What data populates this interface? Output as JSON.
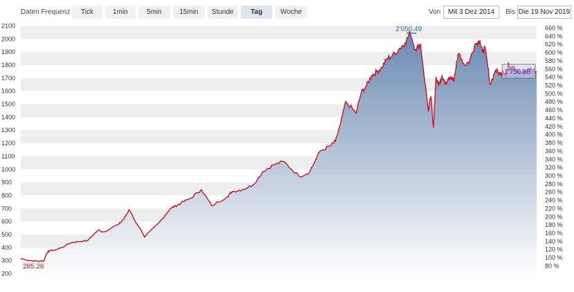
{
  "toolbar": {
    "freq_label": "Daten Frequenz",
    "buttons": [
      "Tick",
      "1min",
      "5min",
      "15min",
      "Stunde",
      "Tag",
      "Woche"
    ],
    "active": "Tag",
    "from_label": "Von",
    "from_value": "Mit 3 Dez 2014",
    "to_label": "Bis",
    "to_value": "Die 19 Nov 2019"
  },
  "colors": {
    "line": "#cc1122",
    "fill_top": "#5a7daa",
    "fill_bottom": "#ffffff",
    "band": "#eeeeee",
    "max_label": "#2a7ab8",
    "last_label": "#5a2ad0"
  },
  "chart_data": {
    "type": "area",
    "title": "",
    "xlabel": "",
    "ylabel": "",
    "x_range": [
      "2014-12-03",
      "2019-11-19"
    ],
    "y_left": {
      "min": 200,
      "max": 2100,
      "ticks": [
        2100,
        2000,
        1900,
        1800,
        1700,
        1600,
        1500,
        1400,
        1300,
        1200,
        1100,
        1000,
        900,
        800,
        700,
        600,
        500,
        400,
        300,
        200
      ]
    },
    "y_right": {
      "ticks": [
        "660 %",
        "640 %",
        "620 %",
        "600 %",
        "580 %",
        "560 %",
        "540 %",
        "520 %",
        "500 %",
        "480 %",
        "460 %",
        "440 %",
        "420 %",
        "400 %",
        "380 %",
        "360 %",
        "340 %",
        "320 %",
        "300 %",
        "280 %",
        "260 %",
        "240 %",
        "220 %",
        "200 %",
        "180 %",
        "160 %",
        "140 %",
        "120 %",
        "100 %",
        "80 %"
      ]
    },
    "grid_bands": true,
    "annotations": {
      "min_label": "285.26",
      "max_label": "2'050.49",
      "last_label": "1'750.88"
    },
    "series": [
      {
        "x": [
          0,
          0.02,
          0.035,
          0.045,
          0.05,
          0.055,
          0.07,
          0.1,
          0.11,
          0.13,
          0.15,
          0.16,
          0.19,
          0.2,
          0.21,
          0.24,
          0.27,
          0.29,
          0.3,
          0.31,
          0.33,
          0.35,
          0.37,
          0.4,
          0.41,
          0.43,
          0.45,
          0.47,
          0.49,
          0.51,
          0.54,
          0.56,
          0.58,
          0.6,
          0.61,
          0.62,
          0.63,
          0.65,
          0.66,
          0.67,
          0.68,
          0.69,
          0.7,
          0.71,
          0.72,
          0.735,
          0.745,
          0.755,
          0.765,
          0.775,
          0.79,
          0.795,
          0.8,
          0.805,
          0.81,
          0.815,
          0.82,
          0.825,
          0.83,
          0.835,
          0.84,
          0.845,
          0.85,
          0.86,
          0.87,
          0.88,
          0.89,
          0.895,
          0.9,
          0.91,
          0.92,
          0.93,
          0.935,
          0.94,
          0.945,
          0.95,
          0.955,
          0.96,
          0.97,
          0.98,
          0.99,
          1.0
        ],
        "values": [
          315,
          300,
          295,
          300,
          355,
          375,
          385,
          440,
          445,
          455,
          535,
          520,
          580,
          620,
          690,
          480,
          600,
          700,
          720,
          740,
          780,
          845,
          720,
          790,
          830,
          845,
          880,
          985,
          1035,
          1060,
          945,
          980,
          1140,
          1180,
          1215,
          1350,
          1520,
          1430,
          1590,
          1640,
          1720,
          1750,
          1780,
          1850,
          1870,
          1930,
          1970,
          2050,
          1920,
          1960,
          1450,
          1560,
          1320,
          1710,
          1640,
          1700,
          1690,
          1650,
          1710,
          1690,
          1690,
          1830,
          1890,
          1800,
          1830,
          1960,
          1990,
          1900,
          1930,
          1650,
          1760,
          1730,
          1760,
          1710,
          1820,
          1780,
          1780,
          1760,
          1740,
          1760,
          1770,
          1750
        ]
      }
    ]
  }
}
